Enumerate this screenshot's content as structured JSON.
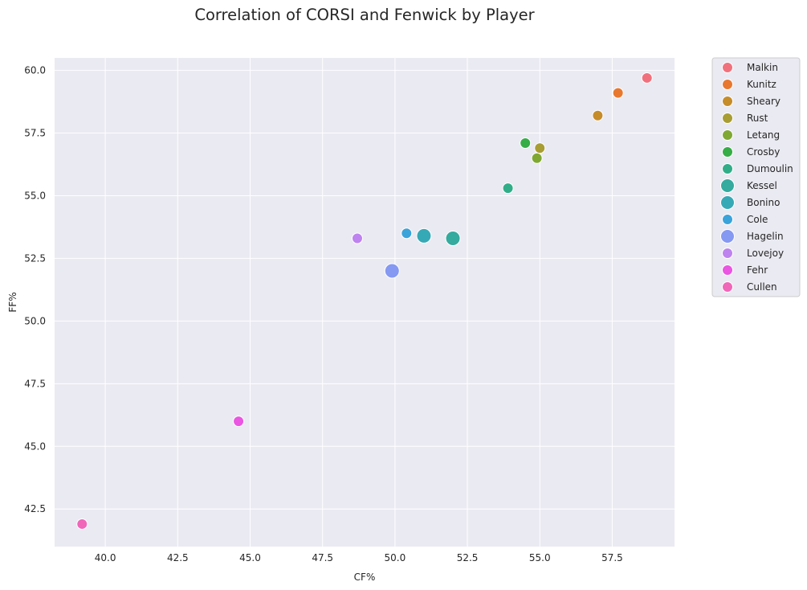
{
  "chart_data": {
    "type": "scatter",
    "title": "Correlation of CORSI and Fenwick by Player",
    "xlabel": "CF%",
    "ylabel": "FF%",
    "xlim": [
      38.25,
      59.65
    ],
    "ylim": [
      41.0,
      60.5
    ],
    "xticks": [
      "40.0",
      "42.5",
      "45.0",
      "47.5",
      "50.0",
      "52.5",
      "55.0",
      "57.5"
    ],
    "yticks": [
      "42.5",
      "45.0",
      "47.5",
      "50.0",
      "52.5",
      "55.0",
      "57.5",
      "60.0"
    ],
    "grid": true,
    "legend_position": "outside-top-right",
    "background": "#eaeaf2",
    "grid_color": "#ffffff",
    "series": [
      {
        "name": "Malkin",
        "color": "#f0717d",
        "size": "small",
        "x": 58.7,
        "y": 59.7
      },
      {
        "name": "Kunitz",
        "color": "#e8782e",
        "size": "small",
        "x": 57.7,
        "y": 59.1
      },
      {
        "name": "Sheary",
        "color": "#c68c2a",
        "size": "small",
        "x": 57.0,
        "y": 58.2
      },
      {
        "name": "Rust",
        "color": "#a89d33",
        "size": "small",
        "x": 55.0,
        "y": 56.9
      },
      {
        "name": "Letang",
        "color": "#7fa833",
        "size": "small",
        "x": 54.9,
        "y": 56.5
      },
      {
        "name": "Crosby",
        "color": "#36ad46",
        "size": "small",
        "x": 54.5,
        "y": 57.1
      },
      {
        "name": "Dumoulin",
        "color": "#31ad88",
        "size": "small",
        "x": 53.9,
        "y": 55.3
      },
      {
        "name": "Kessel",
        "color": "#35aa9e",
        "size": "large",
        "x": 52.0,
        "y": 53.3
      },
      {
        "name": "Bonino",
        "color": "#36a9b6",
        "size": "large",
        "x": 51.0,
        "y": 53.4
      },
      {
        "name": "Cole",
        "color": "#3aa3da",
        "size": "small",
        "x": 50.4,
        "y": 53.5
      },
      {
        "name": "Hagelin",
        "color": "#8598f2",
        "size": "large",
        "x": 49.9,
        "y": 52.0
      },
      {
        "name": "Lovejoy",
        "color": "#be83ef",
        "size": "small",
        "x": 48.7,
        "y": 53.3
      },
      {
        "name": "Fehr",
        "color": "#ea55e2",
        "size": "small",
        "x": 44.6,
        "y": 46.0
      },
      {
        "name": "Cullen",
        "color": "#f066b9",
        "size": "small",
        "x": 39.2,
        "y": 41.9
      }
    ]
  }
}
